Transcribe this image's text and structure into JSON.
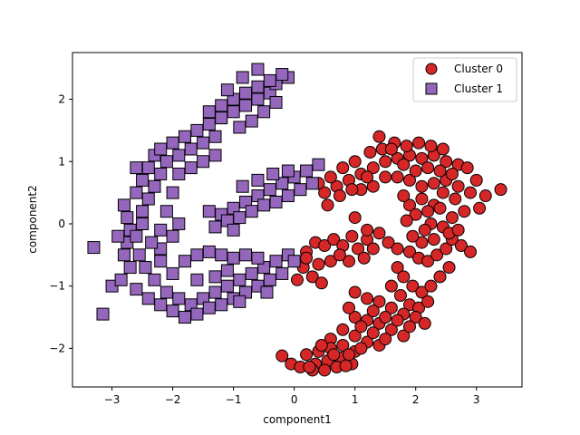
{
  "chart_data": {
    "type": "scatter",
    "title": "",
    "xlabel": "component1",
    "ylabel": "component2",
    "xlim": [
      -3.65,
      3.75
    ],
    "ylim": [
      -2.62,
      2.75
    ],
    "xticks": [
      -3,
      -2,
      -1,
      0,
      1,
      2,
      3
    ],
    "yticks": [
      -2,
      -1,
      0,
      1,
      2
    ],
    "grid": false,
    "legend_position": "top-right",
    "series": [
      {
        "name": "Cluster 0",
        "marker": "circle",
        "color": "#d62728",
        "points": [
          [
            0.2,
            -0.45
          ],
          [
            0.35,
            -0.3
          ],
          [
            0.5,
            -0.35
          ],
          [
            0.65,
            -0.25
          ],
          [
            0.8,
            -0.35
          ],
          [
            0.95,
            -0.2
          ],
          [
            1.05,
            -0.4
          ],
          [
            1.2,
            -0.25
          ],
          [
            1.3,
            -0.4
          ],
          [
            1.15,
            -0.55
          ],
          [
            0.9,
            -0.6
          ],
          [
            0.6,
            -0.6
          ],
          [
            0.4,
            -0.65
          ],
          [
            0.15,
            -0.7
          ],
          [
            0.3,
            -0.85
          ],
          [
            0.05,
            -0.9
          ],
          [
            0.45,
            -0.95
          ],
          [
            0.0,
            -0.6
          ],
          [
            0.2,
            -0.55
          ],
          [
            0.75,
            -0.5
          ],
          [
            1.0,
            0.1
          ],
          [
            1.2,
            -0.1
          ],
          [
            1.4,
            -0.15
          ],
          [
            1.55,
            -0.3
          ],
          [
            1.7,
            -0.4
          ],
          [
            1.9,
            -0.45
          ],
          [
            2.05,
            -0.55
          ],
          [
            2.2,
            -0.6
          ],
          [
            2.35,
            -0.5
          ],
          [
            2.5,
            -0.4
          ],
          [
            2.6,
            -0.25
          ],
          [
            2.75,
            -0.35
          ],
          [
            2.9,
            -0.45
          ],
          [
            2.45,
            -0.05
          ],
          [
            2.25,
            0.0
          ],
          [
            2.6,
            0.1
          ],
          [
            0.5,
            0.5
          ],
          [
            0.7,
            0.6
          ],
          [
            0.9,
            0.7
          ],
          [
            1.1,
            0.8
          ],
          [
            1.3,
            0.9
          ],
          [
            1.5,
            1.0
          ],
          [
            1.7,
            1.05
          ],
          [
            1.9,
            1.1
          ],
          [
            2.1,
            1.05
          ],
          [
            2.3,
            1.1
          ],
          [
            2.5,
            1.0
          ],
          [
            2.7,
            0.95
          ],
          [
            1.0,
            1.0
          ],
          [
            1.25,
            1.15
          ],
          [
            1.45,
            1.2
          ],
          [
            1.65,
            1.3
          ],
          [
            1.85,
            1.25
          ],
          [
            2.05,
            1.3
          ],
          [
            2.25,
            1.25
          ],
          [
            2.45,
            1.2
          ],
          [
            0.8,
            0.9
          ],
          [
            0.6,
            0.75
          ],
          [
            0.4,
            0.65
          ],
          [
            2.85,
            0.9
          ],
          [
            3.0,
            0.7
          ],
          [
            3.15,
            0.45
          ],
          [
            3.4,
            0.55
          ],
          [
            3.05,
            0.25
          ],
          [
            2.9,
            0.5
          ],
          [
            2.7,
            0.6
          ],
          [
            2.5,
            0.7
          ],
          [
            2.3,
            0.65
          ],
          [
            2.1,
            0.6
          ],
          [
            1.9,
            0.7
          ],
          [
            1.7,
            0.75
          ],
          [
            1.5,
            0.75
          ],
          [
            1.3,
            0.6
          ],
          [
            1.1,
            0.55
          ],
          [
            1.4,
            1.4
          ],
          [
            1.6,
            1.2
          ],
          [
            1.8,
            0.95
          ],
          [
            2.0,
            0.85
          ],
          [
            2.2,
            0.9
          ],
          [
            2.4,
            0.85
          ],
          [
            2.6,
            0.8
          ],
          [
            1.2,
            0.75
          ],
          [
            0.95,
            0.55
          ],
          [
            0.75,
            0.45
          ],
          [
            0.55,
            0.3
          ],
          [
            1.9,
            0.3
          ],
          [
            2.1,
            0.4
          ],
          [
            2.3,
            0.3
          ],
          [
            2.0,
            0.15
          ],
          [
            2.2,
            0.2
          ],
          [
            2.4,
            0.25
          ],
          [
            2.65,
            0.4
          ],
          [
            2.8,
            0.2
          ],
          [
            2.55,
            -0.15
          ],
          [
            2.3,
            -0.25
          ],
          [
            2.1,
            -0.3
          ],
          [
            1.95,
            -0.2
          ],
          [
            1.85,
            0.05
          ],
          [
            2.15,
            -0.1
          ],
          [
            2.7,
            -0.1
          ],
          [
            2.45,
            0.5
          ],
          [
            1.8,
            0.45
          ],
          [
            1.7,
            -0.7
          ],
          [
            1.8,
            -0.85
          ],
          [
            1.95,
            -1.0
          ],
          [
            2.1,
            -1.1
          ],
          [
            2.25,
            -1.0
          ],
          [
            2.4,
            -0.85
          ],
          [
            2.55,
            -0.7
          ],
          [
            1.75,
            -1.15
          ],
          [
            1.9,
            -1.3
          ],
          [
            2.05,
            -1.35
          ],
          [
            2.2,
            -1.25
          ],
          [
            1.6,
            -1.0
          ],
          [
            1.0,
            -1.1
          ],
          [
            1.2,
            -1.2
          ],
          [
            1.4,
            -1.25
          ],
          [
            1.6,
            -1.35
          ],
          [
            1.8,
            -1.45
          ],
          [
            2.0,
            -1.5
          ],
          [
            2.15,
            -1.6
          ],
          [
            1.0,
            -1.5
          ],
          [
            1.2,
            -1.55
          ],
          [
            1.4,
            -1.6
          ],
          [
            1.6,
            -1.7
          ],
          [
            1.8,
            -1.8
          ],
          [
            0.8,
            -1.7
          ],
          [
            1.0,
            -1.8
          ],
          [
            1.2,
            -1.9
          ],
          [
            1.4,
            -1.95
          ],
          [
            0.6,
            -1.85
          ],
          [
            0.8,
            -1.95
          ],
          [
            1.0,
            -2.05
          ],
          [
            0.6,
            -2.0
          ],
          [
            0.4,
            -2.05
          ],
          [
            0.2,
            -2.1
          ],
          [
            0.35,
            -2.25
          ],
          [
            0.55,
            -2.2
          ],
          [
            0.75,
            -2.15
          ],
          [
            0.95,
            -2.25
          ],
          [
            0.5,
            -2.35
          ],
          [
            0.7,
            -2.3
          ],
          [
            -0.2,
            -2.12
          ],
          [
            -0.05,
            -2.25
          ],
          [
            0.1,
            -2.3
          ],
          [
            0.3,
            -2.35
          ],
          [
            1.3,
            -1.4
          ],
          [
            1.5,
            -1.5
          ],
          [
            1.7,
            -1.55
          ],
          [
            1.9,
            -1.65
          ],
          [
            0.9,
            -1.35
          ],
          [
            1.1,
            -1.65
          ],
          [
            1.3,
            -1.75
          ],
          [
            1.5,
            -1.85
          ],
          [
            0.9,
            -2.1
          ],
          [
            0.45,
            -1.95
          ],
          [
            0.65,
            -2.1
          ],
          [
            0.25,
            -2.3
          ],
          [
            1.1,
            -2.0
          ],
          [
            0.85,
            -2.28
          ]
        ]
      },
      {
        "name": "Cluster 1",
        "marker": "square",
        "color": "#9467bd",
        "points": [
          [
            -3.3,
            -0.38
          ],
          [
            -3.15,
            -1.45
          ],
          [
            -3.0,
            -1.0
          ],
          [
            -2.85,
            -0.9
          ],
          [
            -2.7,
            -0.7
          ],
          [
            -2.8,
            -0.5
          ],
          [
            -2.75,
            -0.3
          ],
          [
            -2.7,
            -0.1
          ],
          [
            -2.8,
            0.3
          ],
          [
            -2.6,
            0.5
          ],
          [
            -2.5,
            0.7
          ],
          [
            -2.4,
            0.9
          ],
          [
            -2.3,
            1.1
          ],
          [
            -2.2,
            1.2
          ],
          [
            -2.0,
            1.3
          ],
          [
            -1.8,
            1.4
          ],
          [
            -1.6,
            1.5
          ],
          [
            -1.4,
            1.6
          ],
          [
            -1.2,
            1.7
          ],
          [
            -1.0,
            1.8
          ],
          [
            -0.8,
            1.9
          ],
          [
            -0.6,
            2.0
          ],
          [
            -0.4,
            2.1
          ],
          [
            -0.3,
            2.25
          ],
          [
            -0.1,
            2.35
          ],
          [
            -0.2,
            2.4
          ],
          [
            -0.4,
            2.3
          ],
          [
            -0.6,
            2.2
          ],
          [
            -0.8,
            2.1
          ],
          [
            -1.0,
            2.0
          ],
          [
            -1.2,
            1.9
          ],
          [
            -1.4,
            1.8
          ],
          [
            -0.6,
            2.48
          ],
          [
            -0.85,
            2.35
          ],
          [
            -1.1,
            2.15
          ],
          [
            -0.3,
            1.95
          ],
          [
            -0.5,
            1.8
          ],
          [
            -0.7,
            1.65
          ],
          [
            -0.9,
            1.55
          ],
          [
            -1.3,
            1.4
          ],
          [
            -1.5,
            1.3
          ],
          [
            -1.7,
            1.2
          ],
          [
            -1.9,
            1.1
          ],
          [
            -2.1,
            1.0
          ],
          [
            -2.2,
            0.8
          ],
          [
            -2.3,
            0.6
          ],
          [
            -2.4,
            0.4
          ],
          [
            -2.5,
            0.2
          ],
          [
            -2.5,
            0.0
          ],
          [
            -2.6,
            -0.2
          ],
          [
            -2.55,
            -0.5
          ],
          [
            -2.45,
            -0.7
          ],
          [
            -2.3,
            -0.9
          ],
          [
            -2.1,
            -1.1
          ],
          [
            -1.9,
            -1.2
          ],
          [
            -1.7,
            -1.3
          ],
          [
            -1.5,
            -1.2
          ],
          [
            -1.3,
            -1.1
          ],
          [
            -1.1,
            -1.0
          ],
          [
            -0.9,
            -0.9
          ],
          [
            -0.7,
            -0.8
          ],
          [
            -0.5,
            -0.7
          ],
          [
            -0.3,
            -0.6
          ],
          [
            -0.1,
            -0.5
          ],
          [
            0.0,
            -0.6
          ],
          [
            -0.2,
            -0.8
          ],
          [
            -0.4,
            -0.9
          ],
          [
            -0.6,
            -1.0
          ],
          [
            -0.8,
            -1.1
          ],
          [
            -1.0,
            -1.2
          ],
          [
            -1.2,
            -1.3
          ],
          [
            -1.4,
            -1.35
          ],
          [
            -1.6,
            -1.45
          ],
          [
            -1.8,
            -1.5
          ],
          [
            -2.0,
            -1.4
          ],
          [
            -2.2,
            -1.3
          ],
          [
            -2.4,
            -1.2
          ],
          [
            -2.6,
            -1.05
          ],
          [
            -2.0,
            -0.8
          ],
          [
            -1.8,
            -0.6
          ],
          [
            -1.6,
            -0.5
          ],
          [
            -1.4,
            -0.45
          ],
          [
            -1.2,
            -0.5
          ],
          [
            -1.0,
            -0.55
          ],
          [
            -0.8,
            -0.5
          ],
          [
            -2.2,
            -0.4
          ],
          [
            -2.0,
            -0.2
          ],
          [
            -1.9,
            0.0
          ],
          [
            -2.1,
            0.2
          ],
          [
            -2.0,
            0.5
          ],
          [
            -1.9,
            0.8
          ],
          [
            -1.7,
            0.9
          ],
          [
            -1.5,
            1.0
          ],
          [
            -1.3,
            1.1
          ],
          [
            -2.2,
            -0.1
          ],
          [
            -2.35,
            -0.3
          ],
          [
            -2.2,
            -0.6
          ],
          [
            -1.6,
            -0.9
          ],
          [
            -1.3,
            -0.85
          ],
          [
            -1.1,
            -0.75
          ],
          [
            -0.6,
            -0.55
          ],
          [
            -0.45,
            -1.1
          ],
          [
            -0.9,
            -1.25
          ],
          [
            -2.75,
            0.1
          ],
          [
            -2.9,
            -0.2
          ],
          [
            -2.6,
            0.9
          ],
          [
            -1.2,
            0.15
          ],
          [
            -1.0,
            0.25
          ],
          [
            -0.8,
            0.35
          ],
          [
            -0.6,
            0.45
          ],
          [
            -0.4,
            0.55
          ],
          [
            -0.2,
            0.65
          ],
          [
            0.0,
            0.75
          ],
          [
            0.2,
            0.85
          ],
          [
            0.4,
            0.95
          ],
          [
            -1.3,
            -0.05
          ],
          [
            -1.1,
            0.05
          ],
          [
            -0.9,
            0.1
          ],
          [
            -0.7,
            0.2
          ],
          [
            -0.5,
            0.3
          ],
          [
            -0.3,
            0.35
          ],
          [
            -0.1,
            0.45
          ],
          [
            0.1,
            0.55
          ],
          [
            0.3,
            0.65
          ],
          [
            -0.85,
            0.6
          ],
          [
            -0.6,
            0.7
          ],
          [
            -0.35,
            0.8
          ],
          [
            -0.1,
            0.85
          ],
          [
            -1.4,
            0.2
          ],
          [
            -1.0,
            -0.1
          ]
        ]
      }
    ]
  }
}
